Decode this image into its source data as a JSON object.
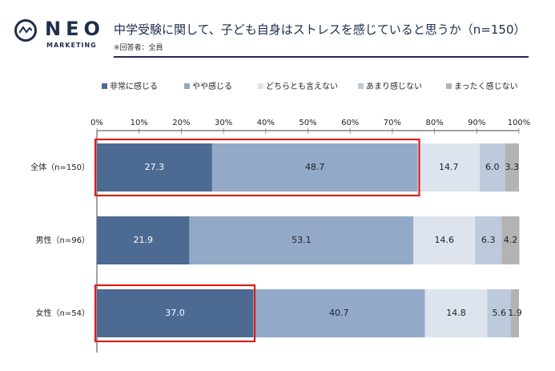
{
  "header": {
    "logo_text": "NEO",
    "logo_sub": "MARKETING",
    "title": "中学受験に関して、子ども自身はストレスを感じていると思うか（n=150）",
    "note": "※回答者：全員"
  },
  "chart_data": {
    "type": "bar",
    "orientation": "horizontal",
    "stacked": true,
    "percent": true,
    "xlim": [
      0,
      100
    ],
    "x_ticks": [
      "0%",
      "10%",
      "20%",
      "30%",
      "40%",
      "50%",
      "60%",
      "70%",
      "80%",
      "90%",
      "100%"
    ],
    "categories": [
      "全体（n=150）",
      "男性（n=96）",
      "女性（n=54）"
    ],
    "legend_position": "top",
    "series": [
      {
        "name": "非常に感じる",
        "color": "#4d6a93",
        "values": [
          27.3,
          21.9,
          37.0
        ],
        "labels": [
          "27.3",
          "21.9",
          "37.0"
        ],
        "label_color": "#ffffff"
      },
      {
        "name": "やや感じる",
        "color": "#93a9c8",
        "values": [
          48.7,
          53.1,
          40.7
        ],
        "labels": [
          "48.7",
          "53.1",
          "40.7"
        ],
        "label_color": "#222222"
      },
      {
        "name": "どちらとも言えない",
        "color": "#dde4ee",
        "values": [
          14.7,
          14.6,
          14.8
        ],
        "labels": [
          "14.7",
          "14.6",
          "14.8"
        ],
        "label_color": "#222222"
      },
      {
        "name": "あまり感じない",
        "color": "#bccadc",
        "values": [
          6.0,
          6.3,
          5.6
        ],
        "labels": [
          "6.0",
          "6.3",
          "5.6"
        ],
        "label_color": "#222222"
      },
      {
        "name": "まったく感じない",
        "color": "#b3b3b3",
        "values": [
          3.3,
          4.2,
          1.9
        ],
        "labels": [
          "3.3",
          "4.2",
          "1.9"
        ],
        "label_color": "#222222"
      }
    ],
    "highlights": [
      {
        "row": 0,
        "from": 0,
        "to": 76.0,
        "color": "#d81f1f"
      },
      {
        "row": 2,
        "from": 0,
        "to": 37.0,
        "color": "#d81f1f"
      }
    ]
  }
}
